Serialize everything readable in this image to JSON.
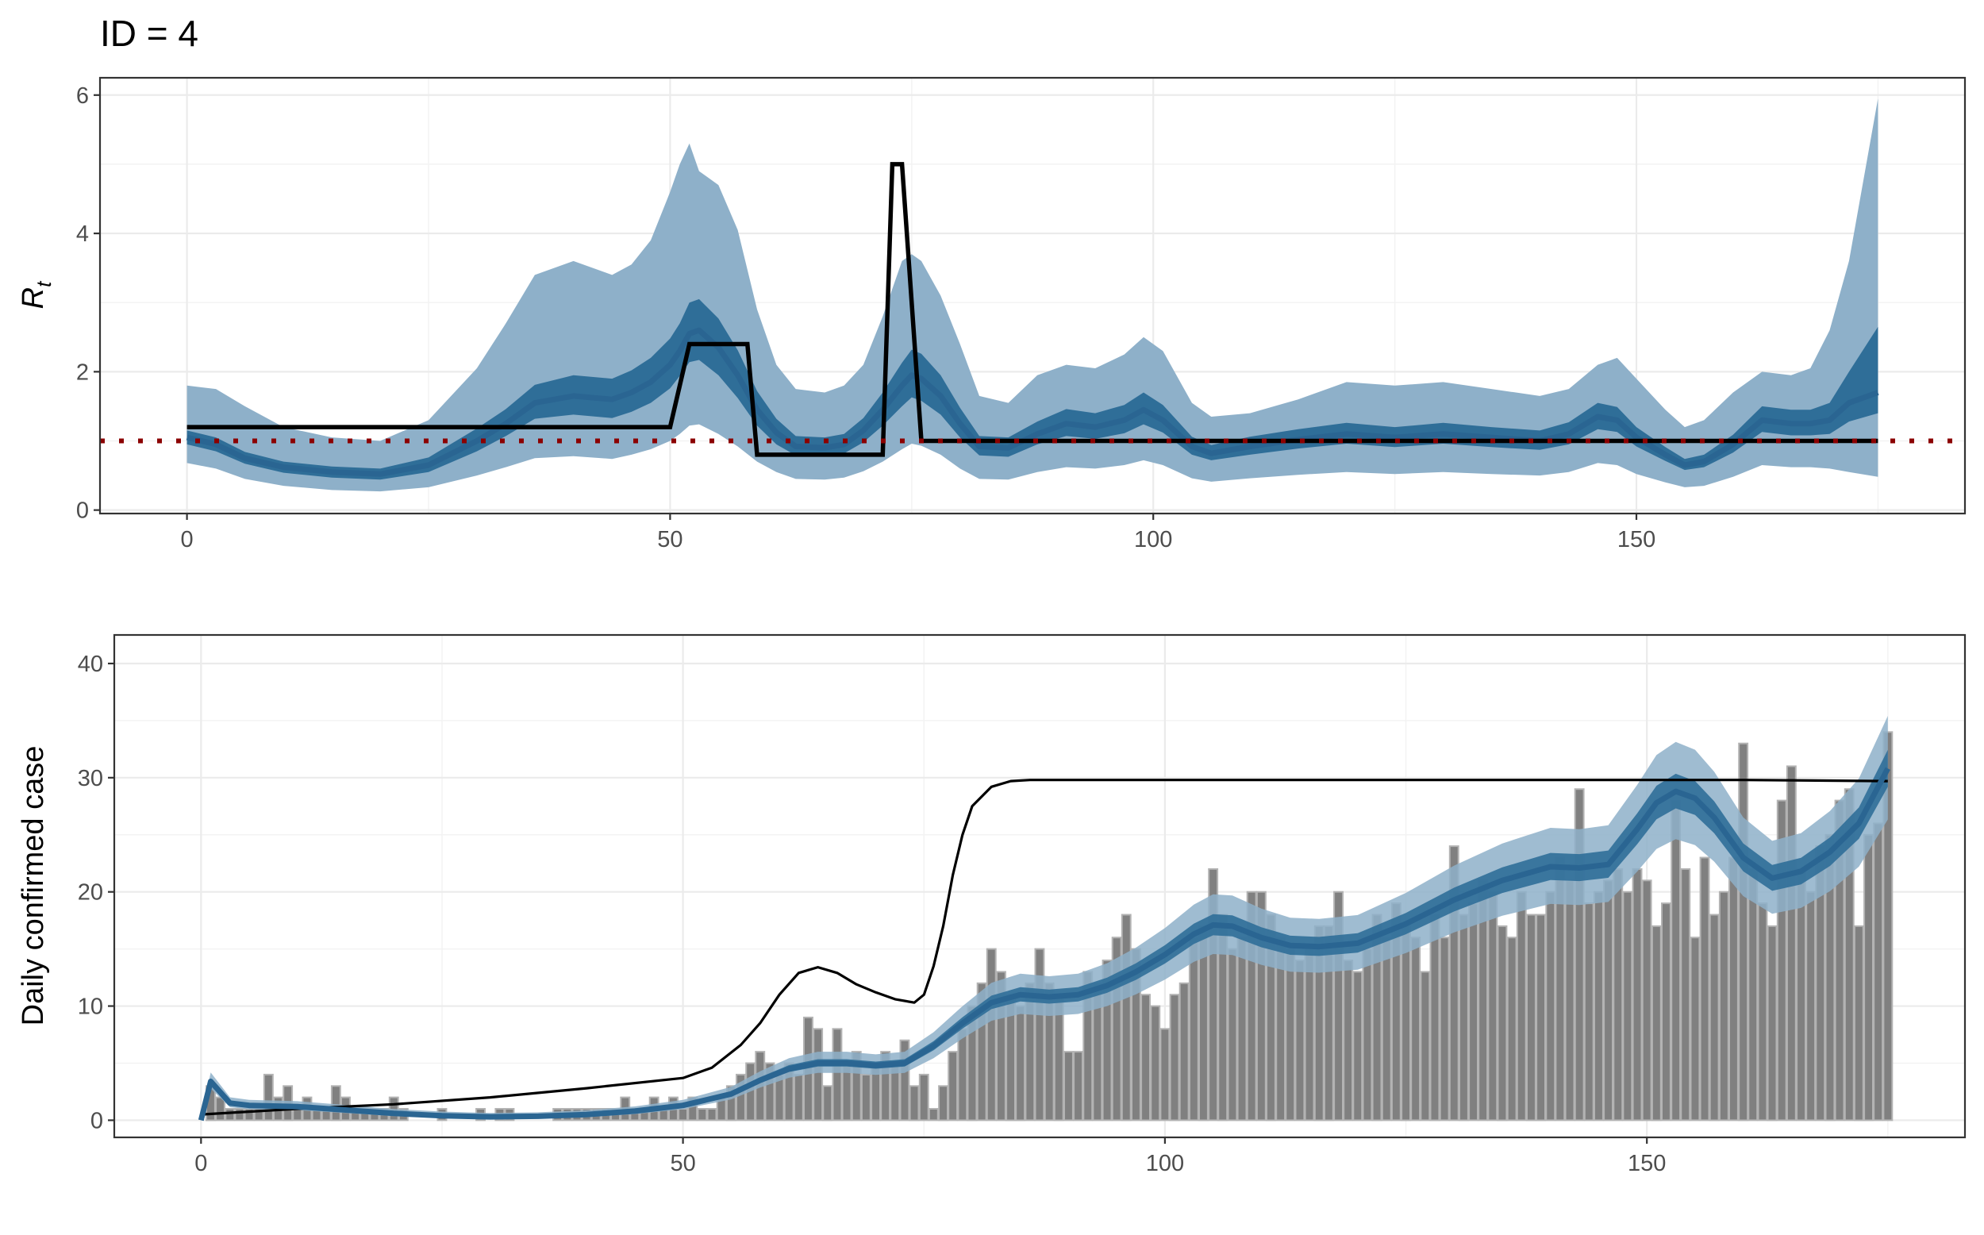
{
  "title": "ID = 4",
  "chart_data": [
    {
      "type": "line",
      "name": "rt-panel",
      "ylabel_main": "R",
      "ylabel_sub": "t",
      "xlim": [
        -9,
        184
      ],
      "ylim": [
        -0.05,
        6.25
      ],
      "x_ticks": [
        0,
        50,
        100,
        150
      ],
      "y_ticks": [
        0,
        2,
        4,
        6
      ],
      "reference_line": 1,
      "colors": {
        "outer_band": "#8eb0c9",
        "inner_band": "#2f6e98",
        "median": "#2a6592",
        "true_rt": "#000000",
        "reference": "#8b0000"
      },
      "true_rt": {
        "x": [
          0,
          50,
          52,
          58,
          59,
          72,
          73,
          74,
          76,
          175
        ],
        "y": [
          1.2,
          1.2,
          2.4,
          2.4,
          0.8,
          0.8,
          5.0,
          5.0,
          1.0,
          1.0
        ]
      },
      "estimate": {
        "x": [
          0,
          3,
          6,
          10,
          15,
          20,
          25,
          30,
          33,
          36,
          40,
          44,
          46,
          48,
          50,
          51,
          52,
          53,
          55,
          57,
          59,
          61,
          63,
          66,
          68,
          70,
          72,
          74,
          75,
          76,
          78,
          80,
          82,
          85,
          88,
          91,
          94,
          97,
          99,
          101,
          104,
          106,
          110,
          115,
          120,
          125,
          130,
          135,
          140,
          143,
          146,
          148,
          150,
          153,
          155,
          157,
          160,
          163,
          166,
          168,
          170,
          172,
          175
        ],
        "median": [
          1.05,
          0.95,
          0.75,
          0.62,
          0.55,
          0.52,
          0.65,
          1.0,
          1.25,
          1.55,
          1.65,
          1.6,
          1.7,
          1.85,
          2.1,
          2.3,
          2.55,
          2.6,
          2.35,
          1.95,
          1.45,
          1.12,
          0.92,
          0.9,
          0.95,
          1.15,
          1.45,
          1.8,
          1.95,
          1.9,
          1.65,
          1.25,
          0.92,
          0.9,
          1.1,
          1.25,
          1.2,
          1.3,
          1.45,
          1.3,
          0.92,
          0.82,
          0.92,
          1.02,
          1.1,
          1.05,
          1.1,
          1.05,
          1.0,
          1.1,
          1.35,
          1.3,
          1.05,
          0.8,
          0.65,
          0.7,
          0.95,
          1.3,
          1.25,
          1.25,
          1.3,
          1.55,
          1.7
        ],
        "lo50": [
          0.95,
          0.85,
          0.67,
          0.54,
          0.47,
          0.44,
          0.55,
          0.85,
          1.07,
          1.32,
          1.38,
          1.33,
          1.42,
          1.55,
          1.76,
          1.94,
          2.14,
          2.17,
          1.95,
          1.62,
          1.22,
          0.95,
          0.79,
          0.77,
          0.82,
          0.98,
          1.22,
          1.5,
          1.63,
          1.58,
          1.38,
          1.05,
          0.79,
          0.77,
          0.95,
          1.07,
          1.03,
          1.11,
          1.24,
          1.12,
          0.8,
          0.72,
          0.8,
          0.89,
          0.96,
          0.91,
          0.96,
          0.91,
          0.87,
          0.95,
          1.17,
          1.13,
          0.92,
          0.71,
          0.58,
          0.62,
          0.83,
          1.13,
          1.08,
          1.08,
          1.1,
          1.28,
          1.4
        ],
        "hi50": [
          1.15,
          1.05,
          0.84,
          0.7,
          0.63,
          0.6,
          0.76,
          1.18,
          1.46,
          1.81,
          1.95,
          1.9,
          2.02,
          2.2,
          2.48,
          2.7,
          3.0,
          3.05,
          2.77,
          2.31,
          1.72,
          1.32,
          1.07,
          1.05,
          1.1,
          1.33,
          1.7,
          2.13,
          2.32,
          2.26,
          1.95,
          1.48,
          1.07,
          1.05,
          1.28,
          1.46,
          1.4,
          1.52,
          1.7,
          1.52,
          1.06,
          0.94,
          1.06,
          1.17,
          1.26,
          1.2,
          1.26,
          1.2,
          1.15,
          1.27,
          1.55,
          1.49,
          1.2,
          0.91,
          0.74,
          0.8,
          1.09,
          1.5,
          1.45,
          1.45,
          1.55,
          2.0,
          2.65
        ],
        "lo95": [
          0.68,
          0.6,
          0.45,
          0.35,
          0.29,
          0.27,
          0.33,
          0.5,
          0.62,
          0.75,
          0.78,
          0.74,
          0.8,
          0.88,
          1.0,
          1.1,
          1.22,
          1.24,
          1.1,
          0.92,
          0.7,
          0.55,
          0.45,
          0.44,
          0.47,
          0.56,
          0.7,
          0.88,
          0.96,
          0.93,
          0.8,
          0.6,
          0.45,
          0.44,
          0.55,
          0.62,
          0.6,
          0.65,
          0.72,
          0.65,
          0.46,
          0.41,
          0.46,
          0.51,
          0.55,
          0.52,
          0.55,
          0.52,
          0.5,
          0.55,
          0.68,
          0.65,
          0.52,
          0.4,
          0.33,
          0.35,
          0.48,
          0.65,
          0.62,
          0.62,
          0.6,
          0.55,
          0.48
        ],
        "hi95": [
          1.8,
          1.75,
          1.5,
          1.2,
          1.05,
          1.0,
          1.3,
          2.05,
          2.7,
          3.4,
          3.6,
          3.4,
          3.55,
          3.9,
          4.6,
          5.0,
          5.3,
          4.9,
          4.7,
          4.05,
          2.9,
          2.1,
          1.75,
          1.7,
          1.8,
          2.1,
          2.8,
          3.6,
          3.7,
          3.6,
          3.1,
          2.4,
          1.65,
          1.55,
          1.95,
          2.1,
          2.05,
          2.25,
          2.5,
          2.3,
          1.55,
          1.35,
          1.4,
          1.6,
          1.85,
          1.8,
          1.85,
          1.75,
          1.65,
          1.75,
          2.1,
          2.2,
          1.9,
          1.45,
          1.2,
          1.3,
          1.7,
          2.0,
          1.95,
          2.05,
          2.6,
          3.6,
          5.95
        ]
      }
    },
    {
      "type": "bar",
      "name": "cases-panel",
      "ylabel": "Daily confirmed case",
      "xlim": [
        -9,
        183
      ],
      "ylim": [
        -1.5,
        42.5
      ],
      "x_ticks": [
        0,
        50,
        100,
        150
      ],
      "y_ticks": [
        0,
        10,
        20,
        30,
        40
      ],
      "colors": {
        "bar_fill": "#808080",
        "bar_outline": "#b3b3b3",
        "outer_band": "#8eb0c9",
        "inner_band": "#2f6e98",
        "median": "#2a6592",
        "expected": "#000000"
      },
      "x": [
        1,
        2,
        3,
        4,
        5,
        6,
        7,
        8,
        9,
        10,
        11,
        12,
        13,
        14,
        15,
        16,
        17,
        18,
        19,
        20,
        21,
        22,
        23,
        24,
        25,
        26,
        27,
        28,
        29,
        30,
        31,
        32,
        33,
        34,
        35,
        36,
        37,
        38,
        39,
        40,
        41,
        42,
        43,
        44,
        45,
        46,
        47,
        48,
        49,
        50,
        51,
        52,
        53,
        54,
        55,
        56,
        57,
        58,
        59,
        60,
        61,
        62,
        63,
        64,
        65,
        66,
        67,
        68,
        69,
        70,
        71,
        72,
        73,
        74,
        75,
        76,
        77,
        78,
        79,
        80,
        81,
        82,
        83,
        84,
        85,
        86,
        87,
        88,
        89,
        90,
        91,
        92,
        93,
        94,
        95,
        96,
        97,
        98,
        99,
        100,
        101,
        102,
        103,
        104,
        105,
        106,
        107,
        108,
        109,
        110,
        111,
        112,
        113,
        114,
        115,
        116,
        117,
        118,
        119,
        120,
        121,
        122,
        123,
        124,
        125,
        126,
        127,
        128,
        129,
        130,
        131,
        132,
        133,
        134,
        135,
        136,
        137,
        138,
        139,
        140,
        141,
        142,
        143,
        144,
        145,
        146,
        147,
        148,
        149,
        150,
        151,
        152,
        153,
        154,
        155,
        156,
        157,
        158,
        159,
        160,
        161,
        162,
        163,
        164,
        165,
        166,
        167,
        168,
        169,
        170,
        171,
        172,
        173,
        174,
        175
      ],
      "values": [
        3,
        2,
        1,
        1,
        1,
        1,
        4,
        2,
        3,
        1,
        2,
        1,
        1,
        3,
        2,
        1,
        1,
        1,
        1,
        2,
        1,
        0,
        0,
        0,
        1,
        0,
        0,
        0,
        1,
        0,
        1,
        1,
        0,
        0,
        0,
        0,
        1,
        1,
        1,
        1,
        1,
        1,
        1,
        2,
        1,
        1,
        2,
        1,
        2,
        1,
        2,
        1,
        1,
        2,
        3,
        4,
        5,
        6,
        5,
        4,
        5,
        4,
        9,
        8,
        3,
        8,
        5,
        6,
        4,
        5,
        6,
        5,
        7,
        3,
        4,
        1,
        3,
        6,
        8,
        10,
        12,
        15,
        13,
        11,
        10,
        12,
        15,
        12,
        11,
        6,
        6,
        13,
        12,
        14,
        16,
        18,
        15,
        11,
        10,
        8,
        11,
        12,
        16,
        17,
        22,
        18,
        15,
        16,
        20,
        20,
        18,
        16,
        15,
        14,
        15,
        17,
        17,
        20,
        14,
        13,
        15,
        18,
        16,
        19,
        17,
        16,
        13,
        18,
        16,
        24,
        18,
        19,
        21,
        20,
        17,
        16,
        20,
        18,
        18,
        20,
        23,
        21,
        29,
        19,
        20,
        21,
        22,
        20,
        22,
        21,
        17,
        19,
        28,
        22,
        16,
        23,
        18,
        20,
        23,
        33,
        22,
        19,
        17,
        28,
        31,
        22,
        20,
        24,
        25,
        28,
        29,
        17,
        25,
        26,
        34
      ],
      "expected": {
        "x": [
          0,
          10,
          20,
          30,
          40,
          50,
          53,
          56,
          58,
          60,
          62,
          64,
          66,
          68,
          70,
          72,
          74,
          75,
          76,
          77,
          78,
          79,
          80,
          82,
          84,
          86,
          90,
          100,
          120,
          140,
          160,
          175
        ],
        "y": [
          0.5,
          1.0,
          1.4,
          2.0,
          2.8,
          3.7,
          4.6,
          6.6,
          8.5,
          11.0,
          12.9,
          13.4,
          12.9,
          11.9,
          11.2,
          10.6,
          10.3,
          11.0,
          13.5,
          17.0,
          21.5,
          25.0,
          27.5,
          29.2,
          29.7,
          29.8,
          29.8,
          29.8,
          29.8,
          29.8,
          29.8,
          29.7
        ]
      },
      "estimate": {
        "x": [
          0,
          1,
          3,
          5,
          10,
          15,
          20,
          25,
          30,
          35,
          40,
          45,
          50,
          55,
          58,
          61,
          64,
          67,
          70,
          73,
          76,
          79,
          82,
          85,
          88,
          91,
          94,
          97,
          100,
          103,
          105,
          107,
          110,
          113,
          116,
          120,
          125,
          130,
          135,
          140,
          143,
          146,
          149,
          151,
          153,
          155,
          157,
          160,
          163,
          166,
          169,
          172,
          175
        ],
        "median": [
          0.0,
          3.4,
          1.5,
          1.3,
          1.2,
          0.9,
          0.6,
          0.4,
          0.3,
          0.35,
          0.5,
          0.8,
          1.3,
          2.3,
          3.5,
          4.5,
          5.0,
          5.0,
          4.8,
          5.0,
          6.5,
          8.5,
          10.3,
          11.0,
          10.8,
          11.0,
          11.8,
          13.0,
          14.5,
          16.3,
          17.1,
          17.0,
          16.0,
          15.3,
          15.2,
          15.5,
          17.2,
          19.3,
          21.0,
          22.2,
          22.1,
          22.4,
          25.5,
          27.8,
          28.8,
          28.2,
          26.5,
          23.0,
          21.2,
          21.8,
          23.5,
          26.0,
          30.8
        ]
      }
    }
  ]
}
